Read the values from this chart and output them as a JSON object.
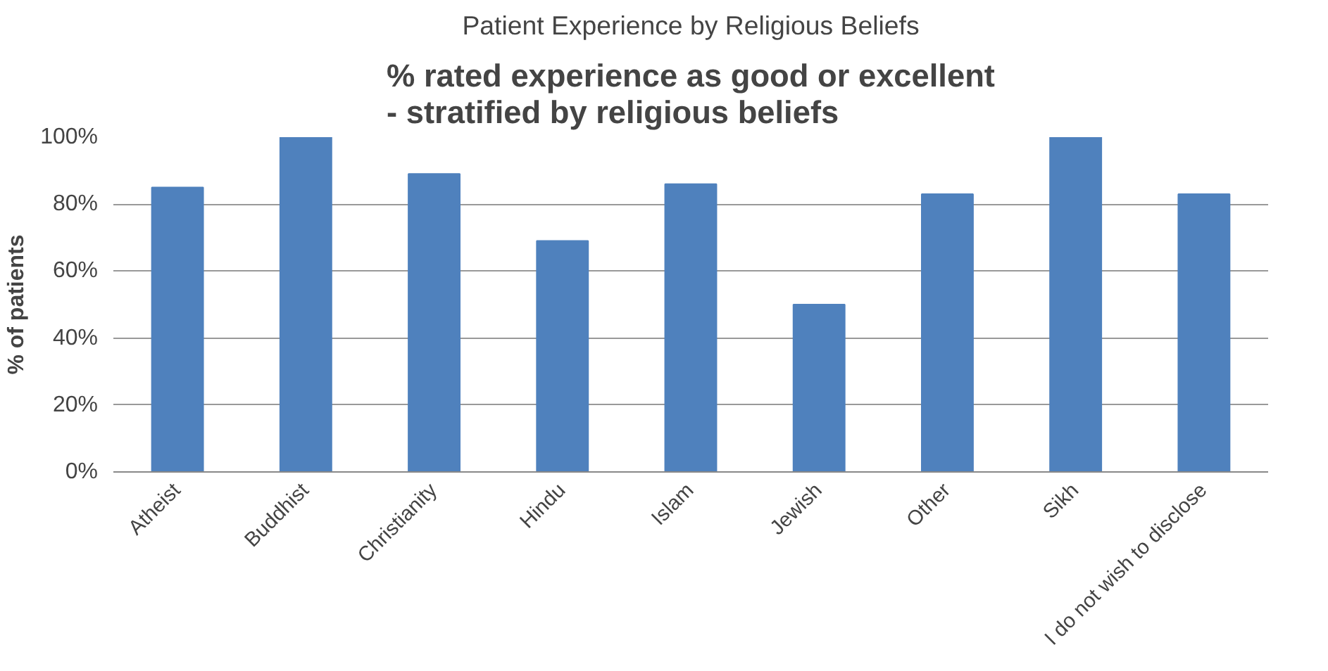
{
  "chart_data": {
    "type": "bar",
    "title": "Patient Experience by Religious Beliefs",
    "subtitle": "% rated experience as good or excellent\n- stratified by religious beliefs",
    "ylabel": "% of patients",
    "categories": [
      "Atheist",
      "Buddhist",
      "Christianity",
      "Hindu",
      "Islam",
      "Jewish",
      "Other",
      "Sikh",
      "I do not wish to disclose"
    ],
    "values": [
      85,
      100,
      89,
      69,
      86,
      50,
      83,
      100,
      83
    ],
    "color": "#4f81bd",
    "ylim": [
      0,
      100
    ],
    "yticks": [
      {
        "value": 0,
        "label": "0%"
      },
      {
        "value": 20,
        "label": "20%"
      },
      {
        "value": 40,
        "label": "40%"
      },
      {
        "value": 60,
        "label": "60%"
      },
      {
        "value": 80,
        "label": "80%"
      },
      {
        "value": 100,
        "label": "100%"
      }
    ],
    "grid": "y"
  }
}
